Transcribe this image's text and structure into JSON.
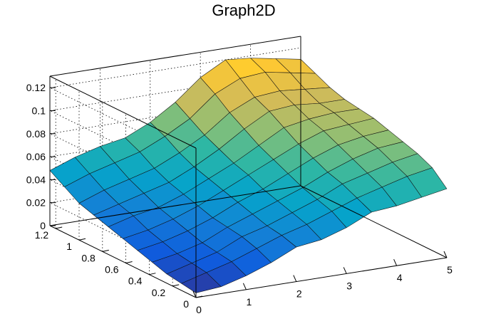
{
  "chart_data": {
    "type": "surface",
    "title": "Graph2D",
    "xlabel": "",
    "ylabel": "",
    "zlabel": "",
    "xlim": [
      0,
      5
    ],
    "ylim": [
      0,
      1.25
    ],
    "zlim": [
      0,
      0.13
    ],
    "x_ticks": [
      "0",
      "1",
      "2",
      "3",
      "4",
      "5"
    ],
    "y_ticks": [
      "0",
      "0.2",
      "0.4",
      "0.6",
      "0.8",
      "1",
      "1.2"
    ],
    "z_ticks": [
      "0",
      "0.02",
      "0.04",
      "0.06",
      "0.08",
      "0.1",
      "0.12"
    ],
    "x_tick_values": [
      0,
      1,
      2,
      3,
      4,
      5
    ],
    "y_tick_values": [
      0,
      0.2,
      0.4,
      0.6,
      0.8,
      1.0,
      1.2
    ],
    "z_tick_values": [
      0,
      0.02,
      0.04,
      0.06,
      0.08,
      0.1,
      0.12
    ],
    "grid": true,
    "palette": "kBird",
    "colors": [
      "#352a87",
      "#0f5cdd",
      "#1481d6",
      "#06a4ca",
      "#2eb7a4",
      "#87bf77",
      "#d1bb59",
      "#fec832",
      "#f9fb0e"
    ],
    "x": [
      0,
      0.5,
      1,
      1.5,
      2,
      2.5,
      3,
      3.5,
      4,
      4.5,
      5
    ],
    "y": [
      0,
      0.125,
      0.25,
      0.375,
      0.5,
      0.625,
      0.75,
      0.875,
      1,
      1.125,
      1.25
    ],
    "z": [
      [
        0.004,
        0.006,
        0.012,
        0.02,
        0.03,
        0.033,
        0.04,
        0.05,
        0.052,
        0.056,
        0.06
      ],
      [
        0.006,
        0.012,
        0.018,
        0.026,
        0.034,
        0.04,
        0.048,
        0.056,
        0.062,
        0.068,
        0.072
      ],
      [
        0.008,
        0.014,
        0.02,
        0.03,
        0.036,
        0.044,
        0.052,
        0.062,
        0.068,
        0.074,
        0.078
      ],
      [
        0.012,
        0.016,
        0.022,
        0.032,
        0.04,
        0.048,
        0.056,
        0.066,
        0.074,
        0.08,
        0.082
      ],
      [
        0.016,
        0.02,
        0.026,
        0.034,
        0.044,
        0.052,
        0.062,
        0.072,
        0.08,
        0.084,
        0.086
      ],
      [
        0.02,
        0.024,
        0.03,
        0.038,
        0.048,
        0.058,
        0.068,
        0.078,
        0.086,
        0.088,
        0.09
      ],
      [
        0.024,
        0.03,
        0.034,
        0.042,
        0.052,
        0.062,
        0.074,
        0.086,
        0.09,
        0.092,
        0.092
      ],
      [
        0.028,
        0.034,
        0.04,
        0.046,
        0.056,
        0.068,
        0.082,
        0.094,
        0.096,
        0.094,
        0.094
      ],
      [
        0.032,
        0.04,
        0.046,
        0.052,
        0.062,
        0.074,
        0.09,
        0.1,
        0.102,
        0.1,
        0.098
      ],
      [
        0.04,
        0.048,
        0.054,
        0.06,
        0.07,
        0.082,
        0.1,
        0.11,
        0.112,
        0.108,
        0.104
      ],
      [
        0.048,
        0.056,
        0.062,
        0.066,
        0.076,
        0.09,
        0.108,
        0.12,
        0.118,
        0.114,
        0.11
      ]
    ]
  }
}
